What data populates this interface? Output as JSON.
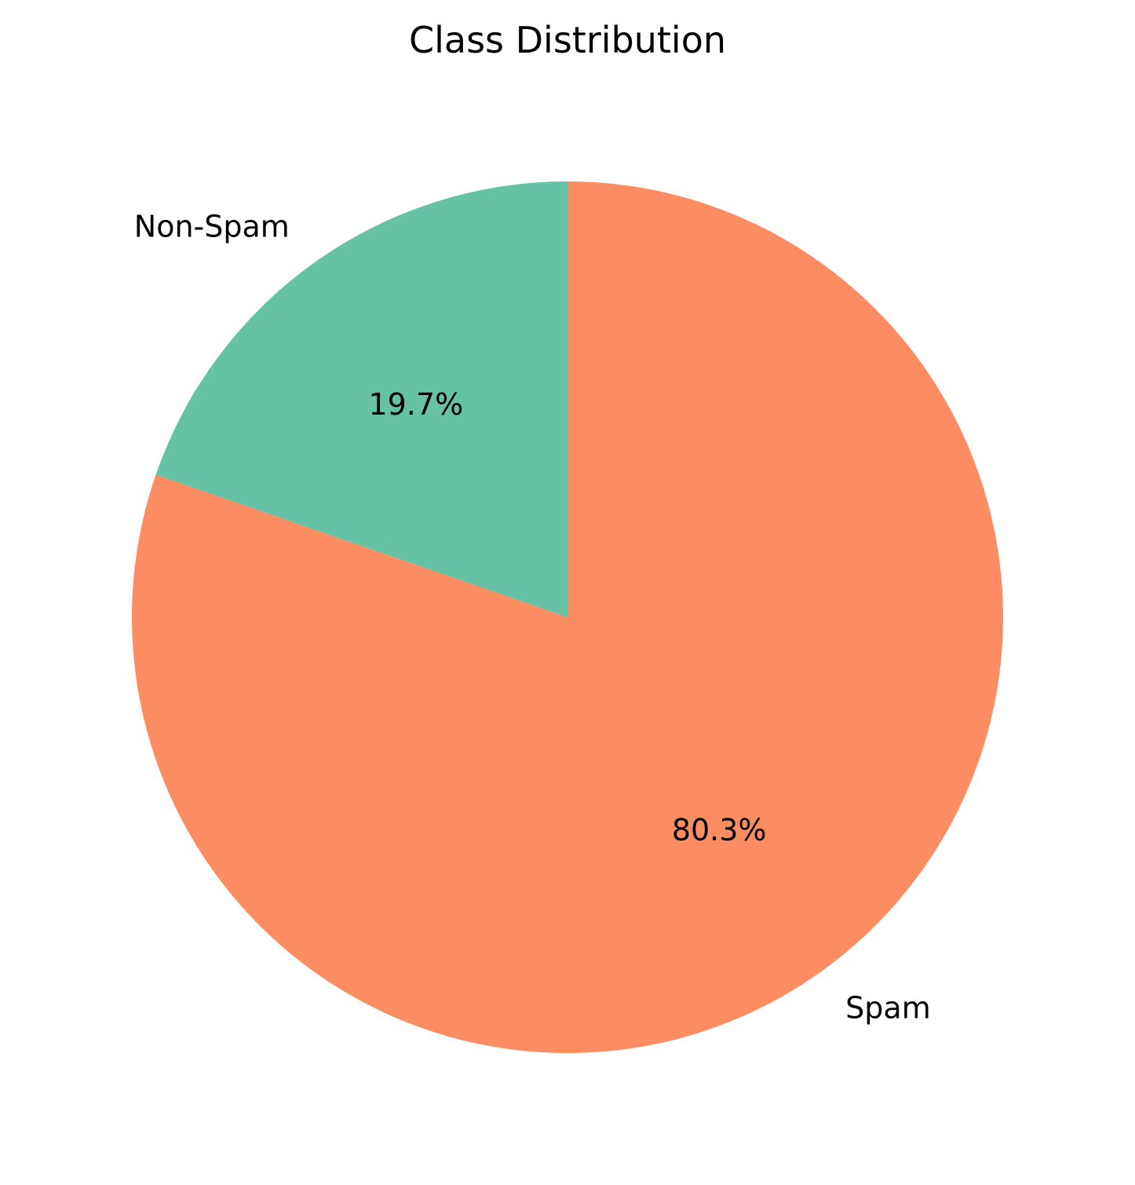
{
  "chart_data": {
    "type": "pie",
    "title": "Class Distribution",
    "categories": [
      "Non-Spam",
      "Spam"
    ],
    "values": [
      19.7,
      80.3
    ],
    "percent_labels": [
      "19.7%",
      "80.3%"
    ],
    "colors": [
      "#66c2a5",
      "#fc8d62"
    ],
    "start_angle_deg": 90,
    "direction": "counterclockwise",
    "legend": "none"
  }
}
